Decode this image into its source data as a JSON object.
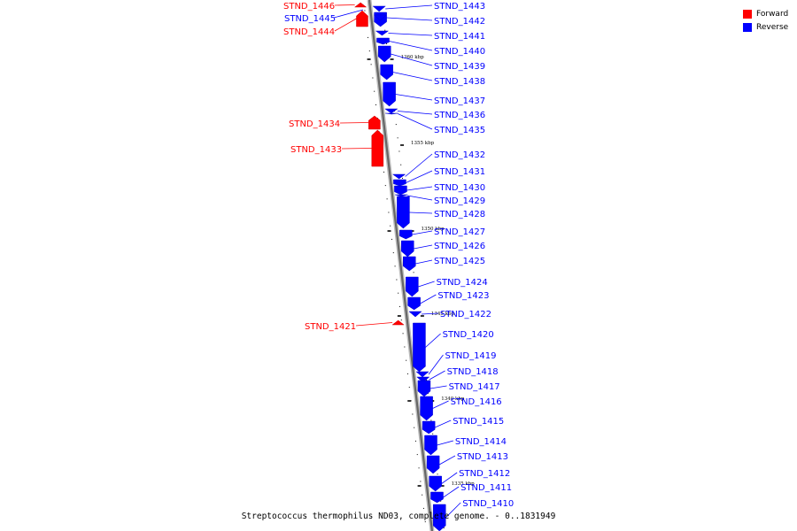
{
  "caption": "Streptococcus thermophilus ND03, complete genome. - 0..1831949",
  "legend": [
    {
      "label": "Forward",
      "color": "#ff0000"
    },
    {
      "label": "Reverse",
      "color": "#0000ff"
    }
  ],
  "colors": {
    "forward": "#ff0000",
    "reverse": "#0000ff",
    "backbone": "#999999"
  },
  "scale_ticks": [
    "1360 kbp",
    "1355 kbp",
    "1350 kbp",
    "1345 kbp",
    "1340 kbp",
    "1335 kbp"
  ],
  "genes": [
    {
      "label": "STND_1446",
      "strand": "forward"
    },
    {
      "label": "STND_1445",
      "strand": "reverse"
    },
    {
      "label": "STND_1444",
      "strand": "forward"
    },
    {
      "label": "STND_1443",
      "strand": "reverse"
    },
    {
      "label": "STND_1442",
      "strand": "reverse"
    },
    {
      "label": "STND_1441",
      "strand": "reverse"
    },
    {
      "label": "STND_1440",
      "strand": "reverse"
    },
    {
      "label": "STND_1439",
      "strand": "reverse"
    },
    {
      "label": "STND_1438",
      "strand": "reverse"
    },
    {
      "label": "STND_1437",
      "strand": "reverse"
    },
    {
      "label": "STND_1436",
      "strand": "reverse"
    },
    {
      "label": "STND_1435",
      "strand": "reverse"
    },
    {
      "label": "STND_1434",
      "strand": "forward"
    },
    {
      "label": "STND_1433",
      "strand": "forward"
    },
    {
      "label": "STND_1432",
      "strand": "reverse"
    },
    {
      "label": "STND_1431",
      "strand": "reverse"
    },
    {
      "label": "STND_1430",
      "strand": "reverse"
    },
    {
      "label": "STND_1429",
      "strand": "reverse"
    },
    {
      "label": "STND_1428",
      "strand": "reverse"
    },
    {
      "label": "STND_1427",
      "strand": "reverse"
    },
    {
      "label": "STND_1426",
      "strand": "reverse"
    },
    {
      "label": "STND_1425",
      "strand": "reverse"
    },
    {
      "label": "STND_1424",
      "strand": "reverse"
    },
    {
      "label": "STND_1423",
      "strand": "reverse"
    },
    {
      "label": "STND_1422",
      "strand": "reverse"
    },
    {
      "label": "STND_1421",
      "strand": "forward"
    },
    {
      "label": "STND_1420",
      "strand": "reverse"
    },
    {
      "label": "STND_1419",
      "strand": "reverse"
    },
    {
      "label": "STND_1418",
      "strand": "reverse"
    },
    {
      "label": "STND_1417",
      "strand": "reverse"
    },
    {
      "label": "STND_1416",
      "strand": "reverse"
    },
    {
      "label": "STND_1415",
      "strand": "reverse"
    },
    {
      "label": "STND_1414",
      "strand": "reverse"
    },
    {
      "label": "STND_1413",
      "strand": "reverse"
    },
    {
      "label": "STND_1412",
      "strand": "reverse"
    },
    {
      "label": "STND_1411",
      "strand": "reverse"
    },
    {
      "label": "STND_1410",
      "strand": "reverse"
    }
  ]
}
